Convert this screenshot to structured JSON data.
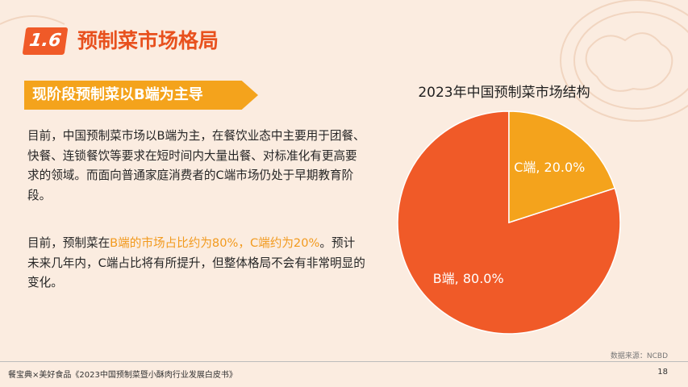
{
  "header": {
    "section_number": "1.6",
    "title": "预制菜市场格局"
  },
  "subtitle": "现阶段预制菜以B端为主导",
  "paragraphs": {
    "p1": "目前，中国预制菜市场以B端为主，在餐饮业态中主要用于团餐、快餐、连锁餐饮等要求在短时间内大量出餐、对标准化有更高要求的领域。而面向普通家庭消费者的C端市场仍处于早期教育阶段。",
    "p2_a": "目前，预制菜在",
    "p2_highlight": "B端的市场占比约为80%，C端约为20%",
    "p2_b": "。预计未来几年内，C端占比将有所提升，但整体格局不会有非常明显的变化。"
  },
  "chart_data": {
    "type": "pie",
    "title": "2023年中国预制菜市场结构",
    "slices": [
      {
        "label": "B端",
        "value": 80.0,
        "display": "B端, 80.0%",
        "color": "#f05a28"
      },
      {
        "label": "C端",
        "value": 20.0,
        "display": "C端, 20.0%",
        "color": "#f4a31c"
      }
    ],
    "start_angle": "12 o'clock",
    "direction": "counter-clockwise"
  },
  "source": "数据来源：NCBD",
  "footer": {
    "left": "餐宝典×美好食品《2023中国预制菜暨小酥肉行业发展白皮书》",
    "page": "18"
  }
}
